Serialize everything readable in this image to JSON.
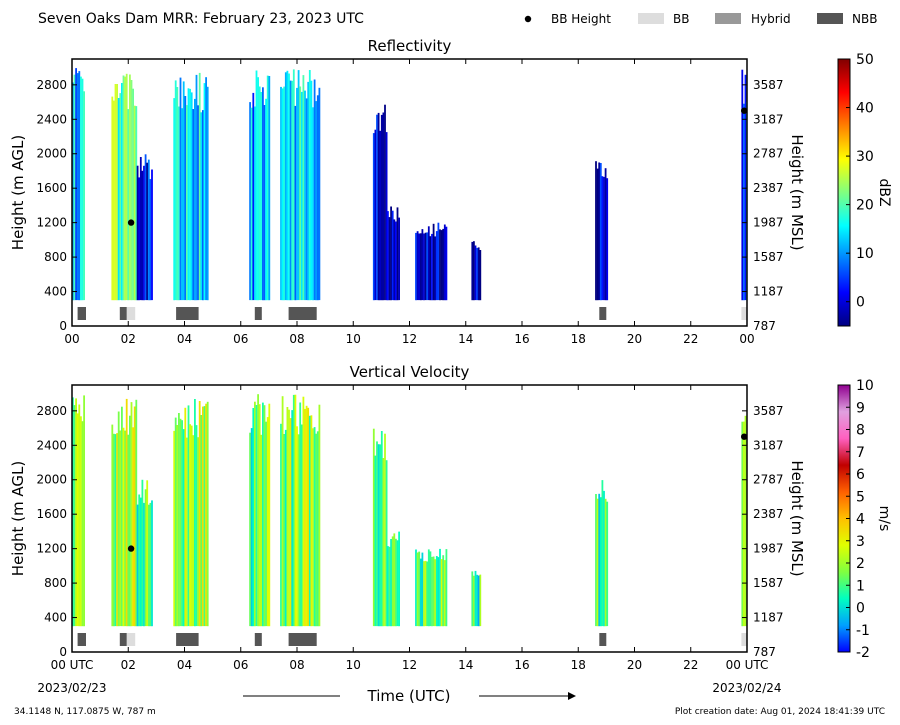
{
  "header": {
    "title": "Seven Oaks Dam MRR:  February 23, 2023 UTC"
  },
  "legend": {
    "items": [
      {
        "label": "BB Height",
        "symbol": "dot",
        "color": "#000000"
      },
      {
        "label": "BB",
        "symbol": "bar",
        "color": "#dddddd"
      },
      {
        "label": "Hybrid",
        "symbol": "bar",
        "color": "#999999"
      },
      {
        "label": "NBB",
        "symbol": "bar",
        "color": "#555555"
      }
    ]
  },
  "footer": {
    "location": "34.1148 N, 117.0875 W, 787 m",
    "creation": "Plot creation date: Aug 01, 2024 18:41:39 UTC",
    "time_label": "Time (UTC)",
    "date_start": "2023/02/23",
    "date_end": "2023/02/24"
  },
  "chart_data": [
    {
      "type": "heatmap",
      "title": "Reflectivity",
      "ylabel": "Height (m AGL)",
      "ylabel_right": "Height (m MSL)",
      "colorbar_label": "dBZ",
      "xlim": [
        0,
        24
      ],
      "ylim": [
        0,
        3100
      ],
      "x_ticks": [
        "00",
        "02",
        "04",
        "06",
        "08",
        "10",
        "12",
        "14",
        "16",
        "18",
        "20",
        "22",
        "00"
      ],
      "y_ticks": [
        0,
        400,
        800,
        1200,
        1600,
        2000,
        2400,
        2800
      ],
      "y_ticks_right": [
        "787",
        "1187",
        "1587",
        "1987",
        "2387",
        "2787",
        "3187",
        "3587"
      ],
      "colorbar_range": [
        -5,
        50
      ],
      "colorbar_ticks": [
        0,
        10,
        20,
        30,
        40,
        50
      ],
      "colorbar_stops": [
        "#000080",
        "#0000ff",
        "#0080ff",
        "#00ffff",
        "#80ff80",
        "#ffff00",
        "#ff8000",
        "#ff0000",
        "#800000"
      ],
      "echoes": [
        {
          "start": 0.0,
          "end": 0.4,
          "top": 3000,
          "value": 12
        },
        {
          "start": 1.4,
          "end": 2.3,
          "top": 2950,
          "value": 20
        },
        {
          "start": 2.3,
          "end": 2.85,
          "top": 2000,
          "value": 3
        },
        {
          "start": 3.6,
          "end": 4.85,
          "top": 2950,
          "value": 14
        },
        {
          "start": 6.3,
          "end": 7.0,
          "top": 3000,
          "value": 10
        },
        {
          "start": 7.4,
          "end": 8.8,
          "top": 3000,
          "value": 14
        },
        {
          "start": 10.7,
          "end": 11.2,
          "top": 2600,
          "value": -1
        },
        {
          "start": 11.2,
          "end": 11.6,
          "top": 1400,
          "value": -1
        },
        {
          "start": 12.2,
          "end": 13.3,
          "top": 1200,
          "value": -1
        },
        {
          "start": 14.2,
          "end": 14.5,
          "top": 1000,
          "value": -1
        },
        {
          "start": 18.6,
          "end": 19.0,
          "top": 2000,
          "value": 0
        },
        {
          "start": 23.8,
          "end": 24.0,
          "top": 3000,
          "value": 8
        }
      ],
      "bb_height_points": [
        {
          "x": 2.1,
          "y": 1200
        },
        {
          "x": 23.9,
          "y": 2500
        }
      ],
      "bb_markers": [
        {
          "start": 0.2,
          "end": 0.5,
          "kind": "NBB"
        },
        {
          "start": 1.7,
          "end": 1.95,
          "kind": "NBB"
        },
        {
          "start": 1.95,
          "end": 2.25,
          "kind": "BB"
        },
        {
          "start": 3.7,
          "end": 4.5,
          "kind": "NBB"
        },
        {
          "start": 6.5,
          "end": 6.75,
          "kind": "NBB"
        },
        {
          "start": 7.7,
          "end": 8.7,
          "kind": "NBB"
        },
        {
          "start": 18.75,
          "end": 19.0,
          "kind": "NBB"
        },
        {
          "start": 23.8,
          "end": 24.0,
          "kind": "BB"
        }
      ]
    },
    {
      "type": "heatmap",
      "title": "Vertical Velocity",
      "ylabel": "Height (m AGL)",
      "ylabel_right": "Height (m MSL)",
      "colorbar_label": "m/s",
      "xlim": [
        0,
        24
      ],
      "ylim": [
        0,
        3100
      ],
      "x_ticks": [
        "00 UTC",
        "02",
        "04",
        "06",
        "08",
        "10",
        "12",
        "14",
        "16",
        "18",
        "20",
        "22",
        "00 UTC"
      ],
      "y_ticks": [
        0,
        400,
        800,
        1200,
        1600,
        2000,
        2400,
        2800
      ],
      "y_ticks_right": [
        "787",
        "1187",
        "1587",
        "1987",
        "2387",
        "2787",
        "3187",
        "3587"
      ],
      "colorbar_range": [
        -2,
        10
      ],
      "colorbar_ticks": [
        -2,
        -1,
        0,
        1,
        2,
        3,
        4,
        5,
        6,
        7,
        8,
        9,
        10
      ],
      "colorbar_stops": [
        "#0000ff",
        "#00a0ff",
        "#00ffc0",
        "#80ff40",
        "#e0ff00",
        "#ffc000",
        "#ff6000",
        "#c00000",
        "#ff60c0",
        "#e0a0e0",
        "#900090"
      ],
      "echoes": [
        {
          "start": 0.0,
          "end": 0.4,
          "top": 3000,
          "value": 1.6
        },
        {
          "start": 1.4,
          "end": 2.3,
          "top": 2950,
          "value": 2.2
        },
        {
          "start": 2.3,
          "end": 2.85,
          "top": 2000,
          "value": 1.2
        },
        {
          "start": 3.6,
          "end": 4.85,
          "top": 2950,
          "value": 2.0
        },
        {
          "start": 6.3,
          "end": 7.0,
          "top": 3000,
          "value": 1.4
        },
        {
          "start": 7.4,
          "end": 8.8,
          "top": 3000,
          "value": 1.8
        },
        {
          "start": 10.7,
          "end": 11.2,
          "top": 2600,
          "value": 1.0
        },
        {
          "start": 11.2,
          "end": 11.6,
          "top": 1400,
          "value": 1.0
        },
        {
          "start": 12.2,
          "end": 13.3,
          "top": 1200,
          "value": 1.2
        },
        {
          "start": 14.2,
          "end": 14.5,
          "top": 1000,
          "value": 0.9
        },
        {
          "start": 18.6,
          "end": 19.0,
          "top": 2000,
          "value": 0.8
        },
        {
          "start": 23.8,
          "end": 24.0,
          "top": 3000,
          "value": 1.5
        }
      ],
      "bb_height_points": [
        {
          "x": 2.1,
          "y": 1200
        },
        {
          "x": 23.9,
          "y": 2500
        }
      ],
      "bb_markers": [
        {
          "start": 0.2,
          "end": 0.5,
          "kind": "NBB"
        },
        {
          "start": 1.7,
          "end": 1.95,
          "kind": "NBB"
        },
        {
          "start": 1.95,
          "end": 2.25,
          "kind": "BB"
        },
        {
          "start": 3.7,
          "end": 4.5,
          "kind": "NBB"
        },
        {
          "start": 6.5,
          "end": 6.75,
          "kind": "NBB"
        },
        {
          "start": 7.7,
          "end": 8.7,
          "kind": "NBB"
        },
        {
          "start": 18.75,
          "end": 19.0,
          "kind": "NBB"
        },
        {
          "start": 23.8,
          "end": 24.0,
          "kind": "BB"
        }
      ]
    }
  ]
}
